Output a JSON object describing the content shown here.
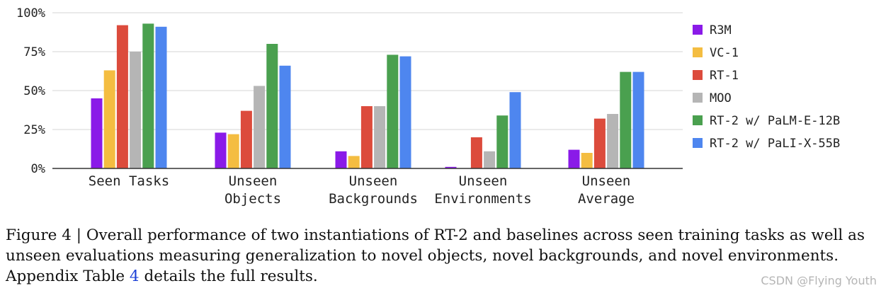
{
  "chart_data": {
    "type": "bar",
    "categories": [
      [
        "Seen Tasks"
      ],
      [
        "Unseen",
        "Objects"
      ],
      [
        "Unseen",
        "Backgrounds"
      ],
      [
        "Unseen",
        "Environments"
      ],
      [
        "Unseen",
        "Average"
      ]
    ],
    "yticks": [
      "0%",
      "25%",
      "50%",
      "75%",
      "100%"
    ],
    "ylim": [
      0,
      100
    ],
    "grid": true,
    "legend_position": "right",
    "series": [
      {
        "name": "R3M",
        "color": "#8a1ae8",
        "values": [
          45,
          23,
          11,
          1,
          12
        ]
      },
      {
        "name": "VC-1",
        "color": "#f4bd41",
        "values": [
          63,
          22,
          8,
          0,
          10
        ]
      },
      {
        "name": "RT-1",
        "color": "#dc4b3c",
        "values": [
          92,
          37,
          40,
          20,
          32
        ]
      },
      {
        "name": "MOO",
        "color": "#b5b5b5",
        "values": [
          75,
          53,
          40,
          11,
          35
        ]
      },
      {
        "name": "RT-2 w/ PaLM-E-12B",
        "color": "#4aa04f",
        "values": [
          93,
          80,
          73,
          34,
          62
        ]
      },
      {
        "name": "RT-2 w/ PaLI-X-55B",
        "color": "#4e86ef",
        "values": [
          91,
          66,
          72,
          49,
          62
        ]
      }
    ]
  },
  "caption": {
    "line1": "Figure 4 | Overall performance of two instantiations of RT-2 and baselines across seen training tasks as well as",
    "line2": "unseen evaluations measuring generalization to novel objects, novel backgrounds, and novel environments.",
    "line3_before": "Appendix Table ",
    "line3_link": "4",
    "line3_after": " details the full results."
  },
  "watermark": "CSDN @Flying Youth"
}
